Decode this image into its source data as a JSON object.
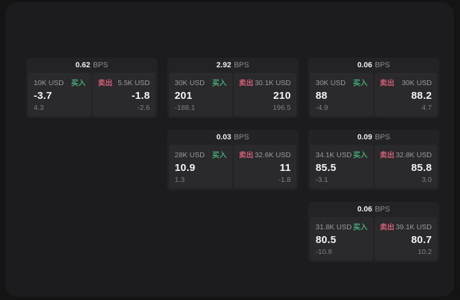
{
  "labels": {
    "buy": "买入",
    "sell": "卖出",
    "bps_unit": "BPS"
  },
  "colors": {
    "page_bg": "#141415",
    "window_bg": "#1c1c1e",
    "card_bg": "#232325",
    "panel_bg": "#2a2a2c",
    "buy_green": "#46a873",
    "sell_red": "#d05f76",
    "value_white": "#f4f4f5",
    "label_gray": "#9b9ba0",
    "delta_gray": "#7f7f85"
  },
  "cards": [
    {
      "row": 1,
      "col": 1,
      "bps": "0.62",
      "buy": {
        "size": "10K USD",
        "value": "-3.7",
        "delta": "4.3"
      },
      "sell": {
        "size": "5.5K USD",
        "value": "-1.8",
        "delta": "-2.6"
      }
    },
    {
      "row": 1,
      "col": 2,
      "bps": "2.92",
      "buy": {
        "size": "30K USD",
        "value": "201",
        "delta": "-188.1"
      },
      "sell": {
        "size": "30.1K USD",
        "value": "210",
        "delta": "196.5"
      }
    },
    {
      "row": 1,
      "col": 3,
      "bps": "0.06",
      "buy": {
        "size": "30K USD",
        "value": "88",
        "delta": "-4.9"
      },
      "sell": {
        "size": "30K USD",
        "value": "88.2",
        "delta": "4.7"
      }
    },
    {
      "row": 2,
      "col": 2,
      "bps": "0.03",
      "buy": {
        "size": "28K USD",
        "value": "10.9",
        "delta": "1.3"
      },
      "sell": {
        "size": "32.6K USD",
        "value": "11",
        "delta": "-1.8"
      }
    },
    {
      "row": 2,
      "col": 3,
      "bps": "0.09",
      "buy": {
        "size": "34.1K USD",
        "value": "85.5",
        "delta": "-3.1"
      },
      "sell": {
        "size": "32.8K USD",
        "value": "85.8",
        "delta": "3.0"
      }
    },
    {
      "row": 3,
      "col": 3,
      "bps": "0.06",
      "buy": {
        "size": "31.8K USD",
        "value": "80.5",
        "delta": "-10.8"
      },
      "sell": {
        "size": "39.1K USD",
        "value": "80.7",
        "delta": "10.2"
      }
    }
  ]
}
